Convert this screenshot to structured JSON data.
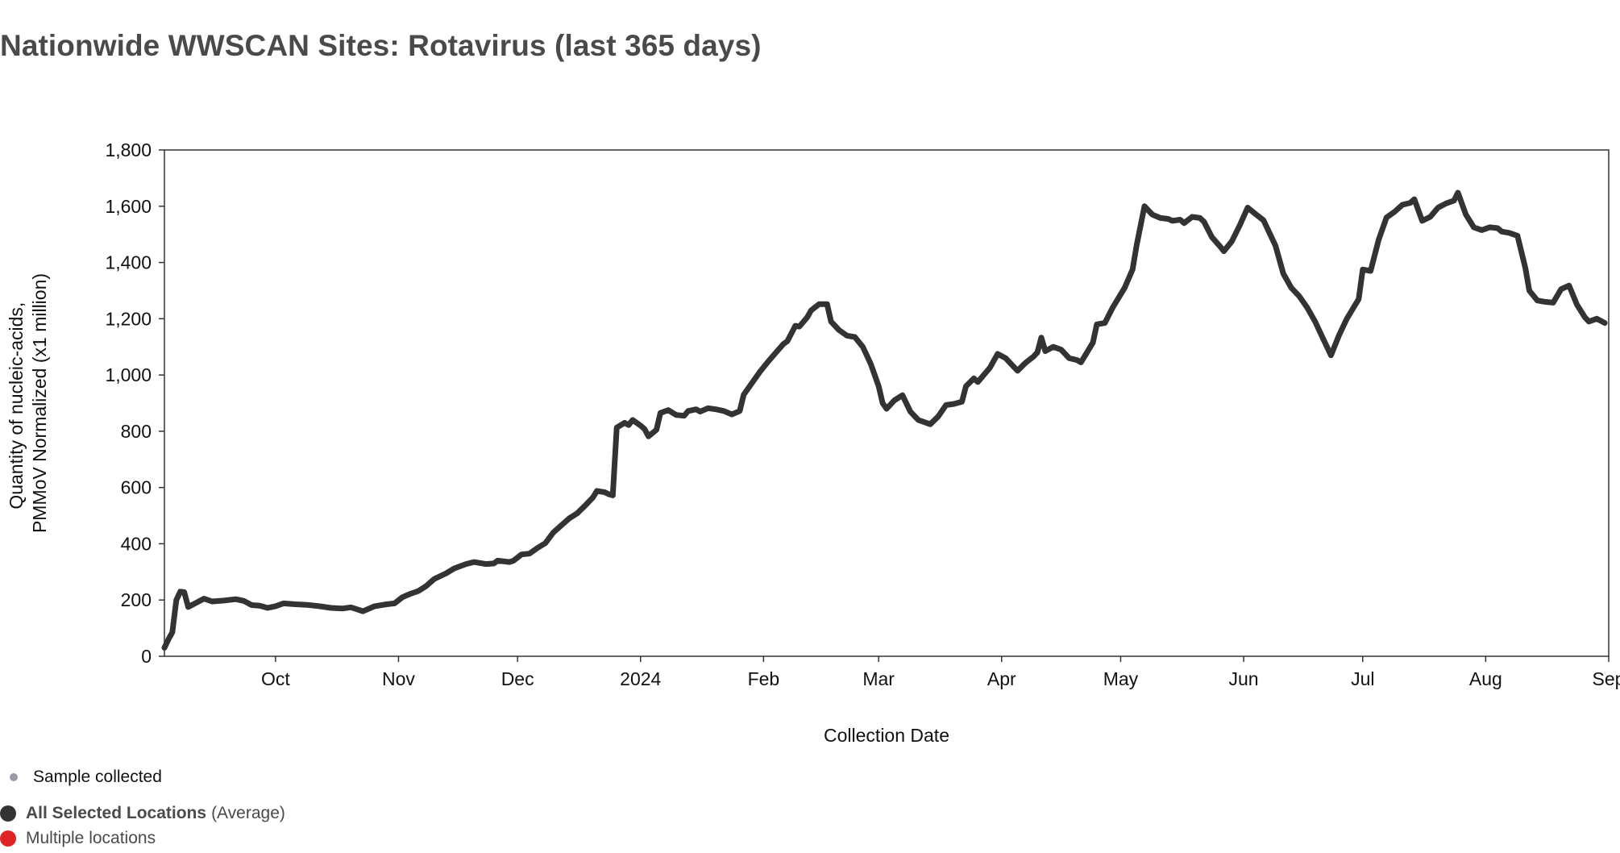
{
  "title": "Nationwide WWSCAN Sites: Rotavirus (last 365 days)",
  "legend": {
    "sample_label": "Sample collected",
    "sample_color": "#9a9aa6",
    "selected_strong": "All Selected Locations",
    "selected_suffix": "(Average)",
    "selected_color": "#333333",
    "multiple_label": "Multiple locations",
    "multiple_color": "#e02424"
  },
  "chart_data": {
    "type": "line",
    "title": "Nationwide WWSCAN Sites: Rotavirus (last 365 days)",
    "xlabel": "Collection Date",
    "ylabel_lines": [
      "Quantity of nucleic-acids,",
      "PMMoV Normalized (x1 million)"
    ],
    "xlim": [
      "2023-09-03",
      "2024-09-01"
    ],
    "ylim": [
      0,
      1800
    ],
    "y_ticks": [
      0,
      200,
      400,
      600,
      800,
      1000,
      1200,
      1400,
      1600,
      1800
    ],
    "y_tick_labels": [
      "0",
      "200",
      "400",
      "600",
      "800",
      "1,000",
      "1,200",
      "1,400",
      "1,600",
      "1,800"
    ],
    "x_ticks": [
      "2023-10-01",
      "2023-11-01",
      "2023-12-01",
      "2024-01-01",
      "2024-02-01",
      "2024-03-01",
      "2024-04-01",
      "2024-05-01",
      "2024-06-01",
      "2024-07-01",
      "2024-08-01",
      "2024-09-01"
    ],
    "x_tick_labels": [
      "Oct",
      "Nov",
      "Dec",
      "2024",
      "Feb",
      "Mar",
      "Apr",
      "May",
      "Jun",
      "Jul",
      "Aug",
      "Sep"
    ],
    "grid": false,
    "series": [
      {
        "name": "All Selected Locations",
        "color": "#333333",
        "points": [
          [
            "2023-09-03",
            30
          ],
          [
            "2023-09-04",
            60
          ],
          [
            "2023-09-05",
            85
          ],
          [
            "2023-09-06",
            200
          ],
          [
            "2023-09-07",
            230
          ],
          [
            "2023-09-08",
            228
          ],
          [
            "2023-09-09",
            175
          ],
          [
            "2023-09-11",
            190
          ],
          [
            "2023-09-13",
            205
          ],
          [
            "2023-09-15",
            195
          ],
          [
            "2023-09-18",
            198
          ],
          [
            "2023-09-21",
            203
          ],
          [
            "2023-09-23",
            197
          ],
          [
            "2023-09-25",
            182
          ],
          [
            "2023-09-27",
            180
          ],
          [
            "2023-09-29",
            172
          ],
          [
            "2023-10-01",
            178
          ],
          [
            "2023-10-03",
            188
          ],
          [
            "2023-10-06",
            185
          ],
          [
            "2023-10-09",
            183
          ],
          [
            "2023-10-12",
            178
          ],
          [
            "2023-10-15",
            172
          ],
          [
            "2023-10-18",
            170
          ],
          [
            "2023-10-20",
            174
          ],
          [
            "2023-10-22",
            165
          ],
          [
            "2023-10-23",
            160
          ],
          [
            "2023-10-26",
            178
          ],
          [
            "2023-10-29",
            185
          ],
          [
            "2023-10-31",
            188
          ],
          [
            "2023-11-02",
            210
          ],
          [
            "2023-11-04",
            222
          ],
          [
            "2023-11-06",
            232
          ],
          [
            "2023-11-08",
            250
          ],
          [
            "2023-11-10",
            275
          ],
          [
            "2023-11-13",
            295
          ],
          [
            "2023-11-15",
            312
          ],
          [
            "2023-11-18",
            328
          ],
          [
            "2023-11-20",
            335
          ],
          [
            "2023-11-23",
            328
          ],
          [
            "2023-11-25",
            330
          ],
          [
            "2023-11-26",
            340
          ],
          [
            "2023-11-29",
            335
          ],
          [
            "2023-11-30",
            340
          ],
          [
            "2023-12-02",
            362
          ],
          [
            "2023-12-04",
            365
          ],
          [
            "2023-12-06",
            385
          ],
          [
            "2023-12-08",
            402
          ],
          [
            "2023-12-10",
            440
          ],
          [
            "2023-12-12",
            465
          ],
          [
            "2023-12-14",
            490
          ],
          [
            "2023-12-16",
            508
          ],
          [
            "2023-12-18",
            535
          ],
          [
            "2023-12-20",
            565
          ],
          [
            "2023-12-21",
            588
          ],
          [
            "2023-12-23",
            583
          ],
          [
            "2023-12-24",
            576
          ],
          [
            "2023-12-25",
            572
          ],
          [
            "2023-12-26",
            813
          ],
          [
            "2023-12-28",
            830
          ],
          [
            "2023-12-29",
            822
          ],
          [
            "2023-12-30",
            840
          ],
          [
            "2024-01-01",
            820
          ],
          [
            "2024-01-02",
            808
          ],
          [
            "2024-01-03",
            782
          ],
          [
            "2024-01-05",
            805
          ],
          [
            "2024-01-06",
            865
          ],
          [
            "2024-01-08",
            875
          ],
          [
            "2024-01-10",
            858
          ],
          [
            "2024-01-12",
            855
          ],
          [
            "2024-01-13",
            872
          ],
          [
            "2024-01-15",
            878
          ],
          [
            "2024-01-16",
            870
          ],
          [
            "2024-01-18",
            882
          ],
          [
            "2024-01-20",
            878
          ],
          [
            "2024-01-22",
            872
          ],
          [
            "2024-01-24",
            860
          ],
          [
            "2024-01-26",
            872
          ],
          [
            "2024-01-27",
            930
          ],
          [
            "2024-01-29",
            970
          ],
          [
            "2024-01-31",
            1010
          ],
          [
            "2024-02-02",
            1045
          ],
          [
            "2024-02-04",
            1078
          ],
          [
            "2024-02-06",
            1110
          ],
          [
            "2024-02-07",
            1120
          ],
          [
            "2024-02-09",
            1175
          ],
          [
            "2024-02-10",
            1172
          ],
          [
            "2024-02-12",
            1205
          ],
          [
            "2024-02-13",
            1230
          ],
          [
            "2024-02-15",
            1252
          ],
          [
            "2024-02-17",
            1252
          ],
          [
            "2024-02-18",
            1190
          ],
          [
            "2024-02-20",
            1160
          ],
          [
            "2024-02-22",
            1140
          ],
          [
            "2024-02-24",
            1135
          ],
          [
            "2024-02-26",
            1100
          ],
          [
            "2024-02-28",
            1040
          ],
          [
            "2024-03-01",
            960
          ],
          [
            "2024-03-02",
            900
          ],
          [
            "2024-03-03",
            880
          ],
          [
            "2024-03-05",
            910
          ],
          [
            "2024-03-07",
            928
          ],
          [
            "2024-03-09",
            870
          ],
          [
            "2024-03-11",
            840
          ],
          [
            "2024-03-14",
            825
          ],
          [
            "2024-03-16",
            852
          ],
          [
            "2024-03-18",
            893
          ],
          [
            "2024-03-20",
            897
          ],
          [
            "2024-03-22",
            905
          ],
          [
            "2024-03-23",
            960
          ],
          [
            "2024-03-25",
            988
          ],
          [
            "2024-03-26",
            975
          ],
          [
            "2024-03-29",
            1025
          ],
          [
            "2024-03-31",
            1075
          ],
          [
            "2024-04-02",
            1060
          ],
          [
            "2024-04-04",
            1030
          ],
          [
            "2024-04-05",
            1015
          ],
          [
            "2024-04-07",
            1043
          ],
          [
            "2024-04-09",
            1065
          ],
          [
            "2024-04-10",
            1080
          ],
          [
            "2024-04-11",
            1133
          ],
          [
            "2024-04-12",
            1085
          ],
          [
            "2024-04-14",
            1100
          ],
          [
            "2024-04-16",
            1090
          ],
          [
            "2024-04-18",
            1060
          ],
          [
            "2024-04-20",
            1053
          ],
          [
            "2024-04-21",
            1045
          ],
          [
            "2024-04-24",
            1115
          ],
          [
            "2024-04-25",
            1180
          ],
          [
            "2024-04-27",
            1185
          ],
          [
            "2024-04-29",
            1240
          ],
          [
            "2024-05-02",
            1310
          ],
          [
            "2024-05-04",
            1375
          ],
          [
            "2024-05-05",
            1460
          ],
          [
            "2024-05-07",
            1600
          ],
          [
            "2024-05-09",
            1570
          ],
          [
            "2024-05-11",
            1558
          ],
          [
            "2024-05-13",
            1555
          ],
          [
            "2024-05-14",
            1548
          ],
          [
            "2024-05-16",
            1552
          ],
          [
            "2024-05-17",
            1540
          ],
          [
            "2024-05-19",
            1562
          ],
          [
            "2024-05-21",
            1558
          ],
          [
            "2024-05-22",
            1545
          ],
          [
            "2024-05-24",
            1490
          ],
          [
            "2024-05-26",
            1458
          ],
          [
            "2024-05-27",
            1440
          ],
          [
            "2024-05-29",
            1475
          ],
          [
            "2024-05-31",
            1532
          ],
          [
            "2024-06-02",
            1595
          ],
          [
            "2024-06-04",
            1572
          ],
          [
            "2024-06-06",
            1550
          ],
          [
            "2024-06-09",
            1460
          ],
          [
            "2024-06-11",
            1360
          ],
          [
            "2024-06-13",
            1310
          ],
          [
            "2024-06-15",
            1280
          ],
          [
            "2024-06-17",
            1240
          ],
          [
            "2024-06-19",
            1190
          ],
          [
            "2024-06-21",
            1130
          ],
          [
            "2024-06-23",
            1070
          ],
          [
            "2024-06-25",
            1140
          ],
          [
            "2024-06-27",
            1200
          ],
          [
            "2024-06-30",
            1270
          ],
          [
            "2024-07-01",
            1375
          ],
          [
            "2024-07-03",
            1370
          ],
          [
            "2024-07-05",
            1480
          ],
          [
            "2024-07-07",
            1560
          ],
          [
            "2024-07-09",
            1580
          ],
          [
            "2024-07-11",
            1605
          ],
          [
            "2024-07-13",
            1612
          ],
          [
            "2024-07-14",
            1625
          ],
          [
            "2024-07-16",
            1548
          ],
          [
            "2024-07-18",
            1562
          ],
          [
            "2024-07-20",
            1595
          ],
          [
            "2024-07-22",
            1610
          ],
          [
            "2024-07-24",
            1620
          ],
          [
            "2024-07-25",
            1648
          ],
          [
            "2024-07-27",
            1570
          ],
          [
            "2024-07-29",
            1525
          ],
          [
            "2024-07-31",
            1515
          ],
          [
            "2024-08-02",
            1525
          ],
          [
            "2024-08-04",
            1522
          ],
          [
            "2024-08-05",
            1510
          ],
          [
            "2024-08-07",
            1505
          ],
          [
            "2024-08-09",
            1495
          ],
          [
            "2024-08-11",
            1380
          ],
          [
            "2024-08-12",
            1300
          ],
          [
            "2024-08-14",
            1265
          ],
          [
            "2024-08-16",
            1260
          ],
          [
            "2024-08-18",
            1257
          ],
          [
            "2024-08-20",
            1305
          ],
          [
            "2024-08-22",
            1318
          ],
          [
            "2024-08-24",
            1250
          ],
          [
            "2024-08-26",
            1205
          ],
          [
            "2024-08-27",
            1190
          ],
          [
            "2024-08-29",
            1200
          ],
          [
            "2024-08-31",
            1185
          ]
        ]
      }
    ]
  }
}
